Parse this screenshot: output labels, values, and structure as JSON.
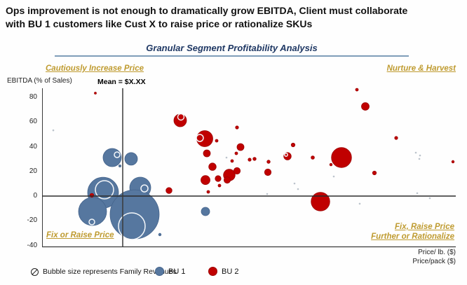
{
  "header": {
    "title": "Ops improvement is not enough to dramatically grow EBITDA, Client must collaborate with BU 1 customers like Cust X to raise price or rationalize SKUs"
  },
  "chart": {
    "title": "Granular Segment Profitability Analysis",
    "quadrants": {
      "top_left": "Cautiously Increase Price",
      "top_right": "Nurture & Harvest",
      "bottom_left": "Fix or Raise Price",
      "bottom_right_line1": "Fix, Raise Price",
      "bottom_right_line2": "Further or Rationalize"
    },
    "y_axis_label": "EBITDA (% of Sales)",
    "mean_label": "Mean = $X.XX",
    "x_axis_label_line1": "Price/ lb. ($)",
    "x_axis_label_line2": "Price/pack ($)",
    "colors": {
      "title_navy": "#1f3864",
      "rule_blue": "#7f9db9",
      "quadrant_gold": "#bf9b30",
      "bu1_blue": "#56779f",
      "bu1_stroke": "#44638b",
      "bu2_red": "#c00000",
      "bu2_stroke": "#9d0505",
      "neutral_dot": "#98a4b0",
      "axis_line": "#3a3a3a"
    }
  },
  "legend": {
    "note": "Bubble size represents Family Revenues",
    "items": [
      {
        "label": "BU 1",
        "color": "#56779f",
        "stroke": "#44638b"
      },
      {
        "label": "BU 2",
        "color": "#c00000",
        "stroke": "#9d0505"
      }
    ]
  },
  "chart_data": {
    "type": "scatter",
    "title": "Granular Segment Profitability Analysis",
    "xlabel": "Price/ lb. ($) / Price/pack ($) (no numeric x ticks shown)",
    "ylabel": "EBITDA (% of Sales)",
    "ylim": [
      -40,
      90
    ],
    "yticks": [
      80,
      60,
      40,
      20,
      0,
      -20,
      -40
    ],
    "grid": false,
    "legend_position": "bottom",
    "bubble_size_meaning": "Family Revenues",
    "mean_line_label": "Mean = $X.XX",
    "zero_line_ebitda": 0,
    "point_format": "[x_position_px, ebitda_pct, bubble_radius_px, optional 'ws'=white-stroked]",
    "series": [
      {
        "name": "BU 1",
        "points": [
          [
            147,
            2.8,
            22
          ],
          [
            132,
            -12.5,
            20
          ],
          [
            160,
            31.2,
            13
          ],
          [
            187,
            30.1,
            9
          ],
          [
            200,
            6.8,
            15
          ],
          [
            192,
            -14.8,
            35
          ],
          [
            293,
            -12.5,
            6
          ],
          [
            171,
            24.4,
            1.6
          ],
          [
            228,
            -31.2,
            1.8
          ]
        ]
      },
      {
        "name": "BU 2",
        "points": [
          [
            487,
            31.2,
            14.3
          ],
          [
            457,
            -4.5,
            13.3
          ],
          [
            292,
            46.5,
            11.5
          ],
          [
            257,
            61.3,
            9
          ],
          [
            327,
            17.0,
            8.3
          ],
          [
            293,
            13.0,
            6.5
          ],
          [
            521,
            72.6,
            5.5
          ],
          [
            410,
            32.3,
            5.3
          ],
          [
            303,
            23.8,
            5.3
          ],
          [
            343,
            39.7,
            5.0
          ],
          [
            295,
            34.6,
            5.0
          ],
          [
            338,
            20.4,
            4.7
          ],
          [
            382,
            19.3,
            4.7
          ],
          [
            324,
            13.0,
            4.6
          ],
          [
            258,
            64.1,
            4.5,
            "ws"
          ],
          [
            241,
            4.5,
            4.3
          ],
          [
            311,
            14.2,
            4.2
          ],
          [
            131,
            0.6,
            2.8
          ],
          [
            446,
            31.2,
            2.4
          ],
          [
            534,
            18.7,
            2.7
          ],
          [
            418,
            41.4,
            2.7
          ],
          [
            565,
            47.1,
            2.2
          ],
          [
            509,
            86.2,
            2.0
          ],
          [
            136,
            83.4,
            1.5
          ],
          [
            338,
            55.6,
            2.2
          ],
          [
            309,
            44.8,
            2.0
          ],
          [
            337,
            34.6,
            2.0
          ],
          [
            331,
            28.4,
            2.0
          ],
          [
            356,
            29.5,
            2.2
          ],
          [
            363,
            30.1,
            2.3
          ],
          [
            383,
            27.8,
            2.3
          ],
          [
            472,
            25.5,
            1.8
          ],
          [
            313,
            8.5,
            2.0
          ],
          [
            297,
            3.4,
            2.0
          ],
          [
            646,
            27.8,
            1.8
          ]
        ]
      },
      {
        "name": "unlabeled small dots",
        "points": [
          [
            76,
            53.3,
            1.3
          ],
          [
            323,
            31.2,
            1.3
          ],
          [
            420,
            10.2,
            1.3
          ],
          [
            381,
            1.7,
            1.3
          ],
          [
            593,
            35.2,
            1.3
          ],
          [
            599,
            32.9,
            1.3
          ],
          [
            598,
            30.1,
            1.3
          ],
          [
            476,
            15.9,
            1.3
          ],
          [
            595,
            2.3,
            1.3
          ],
          [
            613,
            -1.7,
            1.3
          ],
          [
            425,
            5.7,
            1.3
          ],
          [
            513,
            -6.2,
            1.3
          ]
        ]
      }
    ],
    "highlight_rings": {
      "meaning": "white-outlined circles overlaid on bubbles (highlighted families)",
      "points": [
        [
          149,
          5.1,
          13
        ],
        [
          131,
          -21.0,
          4
        ],
        [
          188,
          -24.4,
          19
        ],
        [
          206,
          6.2,
          5
        ],
        [
          167,
          33.5,
          4
        ],
        [
          285,
          47.1,
          5
        ],
        [
          408,
          33.5,
          2.2
        ]
      ]
    }
  }
}
